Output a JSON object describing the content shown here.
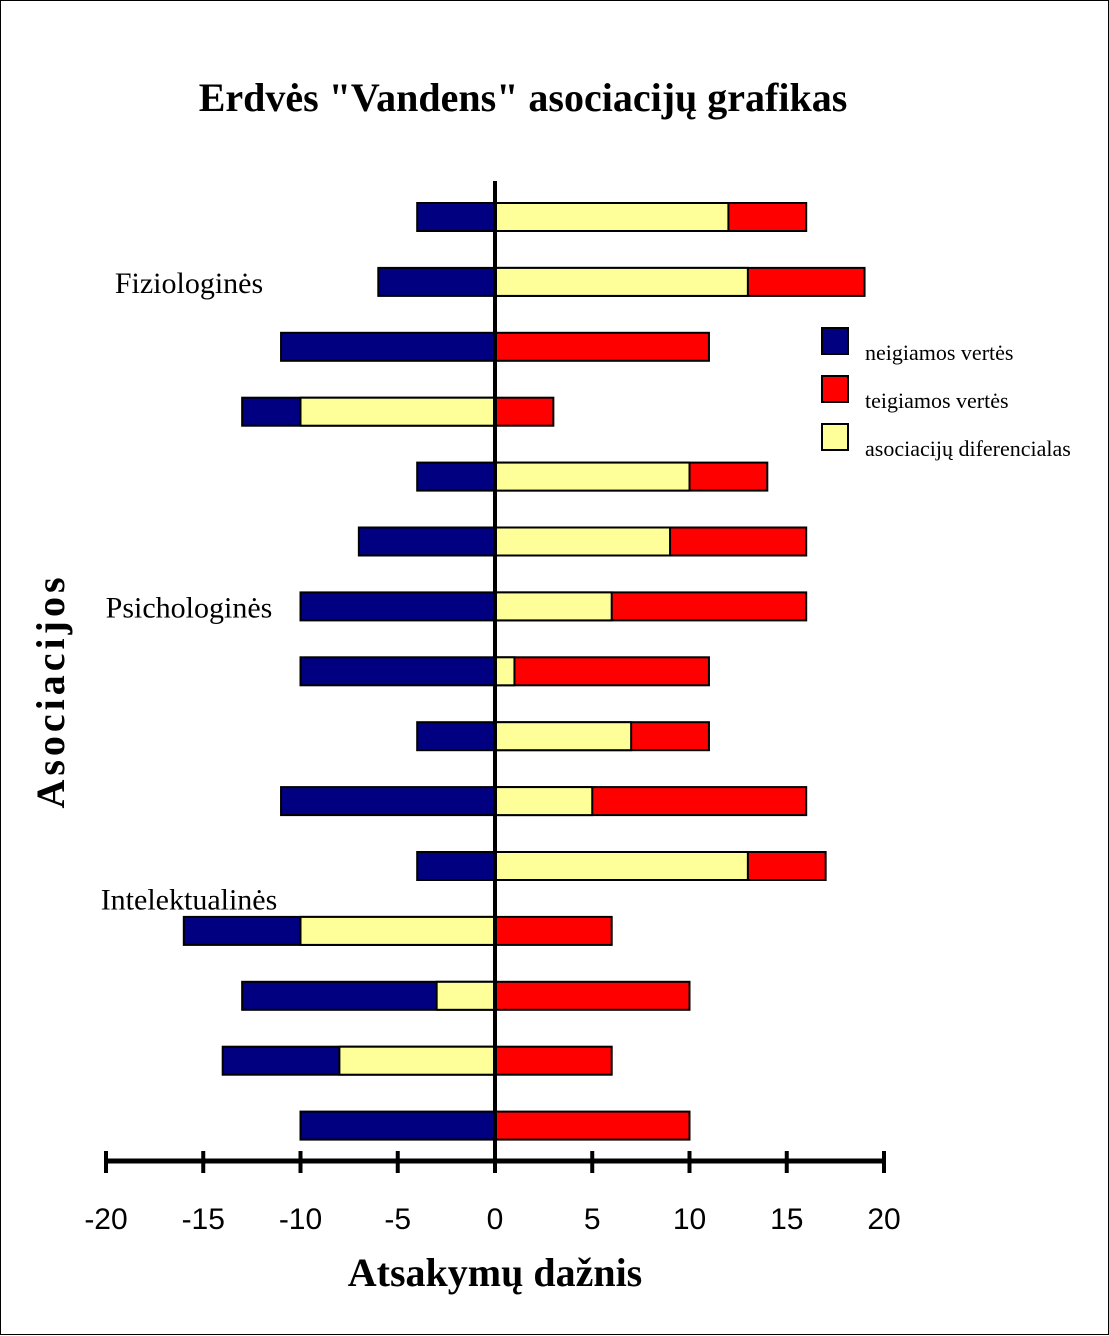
{
  "chart_data": {
    "type": "bar",
    "orientation": "horizontal",
    "stacked": true,
    "title": "Erdvės \"Vandens\" asociacijų grafikas",
    "xlabel": "Atsakymų dažnis",
    "ylabel": "Asociacijos",
    "xlim": [
      -20,
      20
    ],
    "xticks": [
      "-20",
      "-15",
      "-10",
      "-5",
      "0",
      "5",
      "10",
      "15",
      "20"
    ],
    "grid": false,
    "legend_position": "right",
    "legend": [
      {
        "label": "neigiamos vertės",
        "color": "#000080"
      },
      {
        "label": "teigiamos vertės",
        "color": "#ff0000"
      },
      {
        "label": "asociacijų diferencialas",
        "color": "#ffff99"
      }
    ],
    "group_labels": [
      {
        "label": "Fiziologinės",
        "row": 1
      },
      {
        "label": "Psichologinės",
        "row": 6
      },
      {
        "label": "Intelektualinės",
        "row": 10.5
      }
    ],
    "rows": [
      {
        "neigiamos": -4,
        "teigiamos": 16,
        "diferencialas": 12
      },
      {
        "neigiamos": -6,
        "teigiamos": 19,
        "diferencialas": 13
      },
      {
        "neigiamos": -11,
        "teigiamos": 11,
        "diferencialas": 0
      },
      {
        "neigiamos": -13,
        "teigiamos": 3,
        "diferencialas": -10
      },
      {
        "neigiamos": -4,
        "teigiamos": 14,
        "diferencialas": 10
      },
      {
        "neigiamos": -7,
        "teigiamos": 16,
        "diferencialas": 9
      },
      {
        "neigiamos": -10,
        "teigiamos": 16,
        "diferencialas": 6
      },
      {
        "neigiamos": -10,
        "teigiamos": 11,
        "diferencialas": 1
      },
      {
        "neigiamos": -4,
        "teigiamos": 11,
        "diferencialas": 7
      },
      {
        "neigiamos": -11,
        "teigiamos": 16,
        "diferencialas": 5
      },
      {
        "neigiamos": -4,
        "teigiamos": 17,
        "diferencialas": 13
      },
      {
        "neigiamos": -16,
        "teigiamos": 6,
        "diferencialas": -10
      },
      {
        "neigiamos": -13,
        "teigiamos": 10,
        "diferencialas": -3
      },
      {
        "neigiamos": -14,
        "teigiamos": 6,
        "diferencialas": -8
      },
      {
        "neigiamos": -10,
        "teigiamos": 10,
        "diferencialas": 0
      }
    ]
  }
}
